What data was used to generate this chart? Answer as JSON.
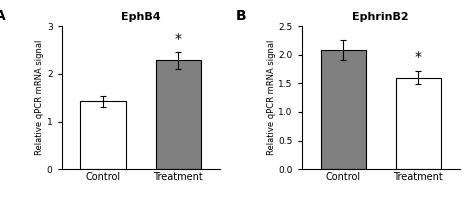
{
  "panel_A": {
    "title": "EphB4",
    "label": "A",
    "categories": [
      "Control",
      "Treatment"
    ],
    "values": [
      1.42,
      2.28
    ],
    "errors": [
      0.12,
      0.17
    ],
    "colors": [
      "#ffffff",
      "#808080"
    ],
    "edgecolor": "#000000",
    "ylim": [
      0,
      3
    ],
    "yticks": [
      0,
      1,
      2,
      3
    ],
    "ylabel": "Relative qPCR mRNA signal",
    "significance": [
      false,
      true
    ]
  },
  "panel_B": {
    "title": "EphrinB2",
    "label": "B",
    "categories": [
      "Control",
      "Treatment"
    ],
    "values": [
      2.08,
      1.6
    ],
    "errors": [
      0.18,
      0.12
    ],
    "colors": [
      "#808080",
      "#ffffff"
    ],
    "edgecolor": "#000000",
    "ylim": [
      0,
      2.5
    ],
    "yticks": [
      0.0,
      0.5,
      1.0,
      1.5,
      2.0,
      2.5
    ],
    "ylabel": "Relative qPCR mRNA signal",
    "significance": [
      false,
      true
    ]
  },
  "bar_width": 0.6,
  "background_color": "#ffffff",
  "fontsize_title": 8,
  "fontsize_ylabel": 6,
  "fontsize_tick": 6.5,
  "fontsize_panel_label": 10,
  "fontsize_xticklabel": 7,
  "fontsize_star": 10
}
